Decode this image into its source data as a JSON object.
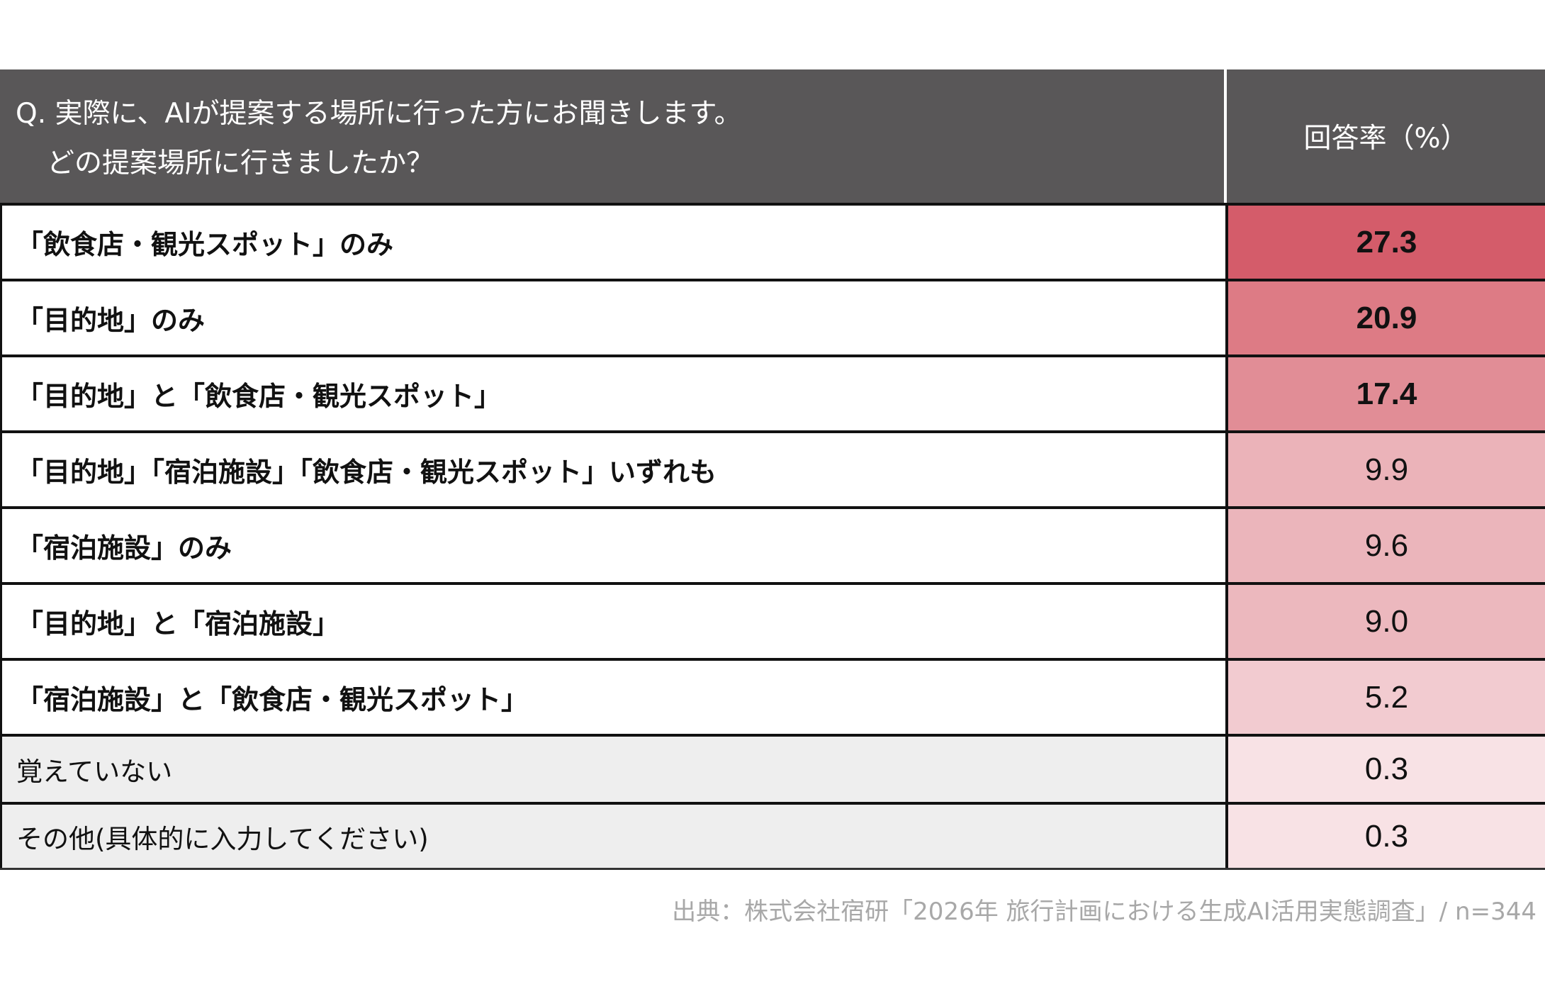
{
  "header": {
    "question_line1": "Q. 実際に、AIが提案する場所に行った方にお聞きします。",
    "question_line2": "どの提案場所に行きましたか？",
    "rate_label": "回答率（%）"
  },
  "rows": [
    {
      "label": "「飲食店・観光スポット」のみ",
      "value": "27.3",
      "color": "#d45c6a",
      "bold": true
    },
    {
      "label": "「目的地」のみ",
      "value": "20.9",
      "color": "#dd7b85",
      "bold": true
    },
    {
      "label": "「目的地」と「飲食店・観光スポット」",
      "value": "17.4",
      "color": "#e18d96",
      "bold": true
    },
    {
      "label": "「目的地」「宿泊施設」「飲食店・観光スポット」いずれも",
      "value": "9.9",
      "color": "#ebb3b9",
      "bold": false
    },
    {
      "label": "「宿泊施設」のみ",
      "value": "9.6",
      "color": "#ebb5bb",
      "bold": false
    },
    {
      "label": "「目的地」と「宿泊施設」",
      "value": "9.0",
      "color": "#ecb8be",
      "bold": false
    },
    {
      "label": "「宿泊施設」と「飲食店・観光スポット」",
      "value": "5.2",
      "color": "#f2cbd0",
      "bold": false
    },
    {
      "label": "覚えていない",
      "value": "0.3",
      "color": "#f8e2e5",
      "bold": false,
      "other": true
    },
    {
      "label": "その他(具体的に入力してください)",
      "value": "0.3",
      "color": "#f8e2e5",
      "bold": false,
      "other": true
    }
  ],
  "footer": {
    "source": "出典：株式会社宿研「2026年 旅行計画における生成AI活用実態調査」/ n=344"
  }
}
